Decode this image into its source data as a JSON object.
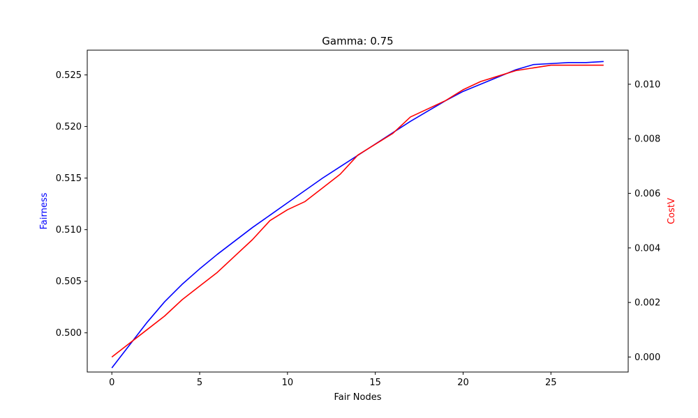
{
  "chart_data": {
    "type": "line",
    "title": "Gamma: 0.75",
    "xlabel": "Fair Nodes",
    "ylabel_left": "Fairness",
    "ylabel_right": "CostV",
    "xlim": [
      -1.4,
      29.4
    ],
    "ylim_left": [
      0.4962,
      0.5274
    ],
    "ylim_right": [
      -0.00055,
      0.01125
    ],
    "x_ticks": [
      0,
      5,
      10,
      15,
      20,
      25
    ],
    "x_tick_labels": [
      "0",
      "5",
      "10",
      "15",
      "20",
      "25"
    ],
    "y_left_ticks": [
      0.5,
      0.505,
      0.51,
      0.515,
      0.52,
      0.525
    ],
    "y_left_tick_labels": [
      "0.500",
      "0.505",
      "0.510",
      "0.515",
      "0.520",
      "0.525"
    ],
    "y_right_ticks": [
      0.0,
      0.002,
      0.004,
      0.006,
      0.008,
      0.01
    ],
    "y_right_tick_labels": [
      "0.000",
      "0.002",
      "0.004",
      "0.006",
      "0.008",
      "0.010"
    ],
    "grid": false,
    "x": [
      0,
      1,
      2,
      3,
      4,
      5,
      6,
      7,
      8,
      9,
      10,
      11,
      12,
      13,
      14,
      15,
      16,
      17,
      18,
      19,
      20,
      21,
      22,
      23,
      24,
      25,
      26,
      27,
      28
    ],
    "series": [
      {
        "axis": "left",
        "color": "#0000ff",
        "values": [
          0.4966,
          0.4988,
          0.501,
          0.503,
          0.5047,
          0.5062,
          0.5076,
          0.5089,
          0.5102,
          0.5114,
          0.5126,
          0.5138,
          0.515,
          0.5161,
          0.5172,
          0.5183,
          0.5194,
          0.5205,
          0.5215,
          0.5225,
          0.5234,
          0.5241,
          0.5248,
          0.5255,
          0.526,
          0.5261,
          0.5262,
          0.5262,
          0.5263
        ]
      },
      {
        "axis": "right",
        "color": "#ff0000",
        "values": [
          0.0,
          0.0005,
          0.001,
          0.0015,
          0.0021,
          0.0026,
          0.0031,
          0.0037,
          0.0043,
          0.005,
          0.0054,
          0.0057,
          0.0062,
          0.0067,
          0.0074,
          0.0078,
          0.0082,
          0.0088,
          0.0091,
          0.0094,
          0.0098,
          0.0101,
          0.0103,
          0.0105,
          0.0106,
          0.0107,
          0.0107,
          0.0107,
          0.0107
        ]
      }
    ]
  }
}
